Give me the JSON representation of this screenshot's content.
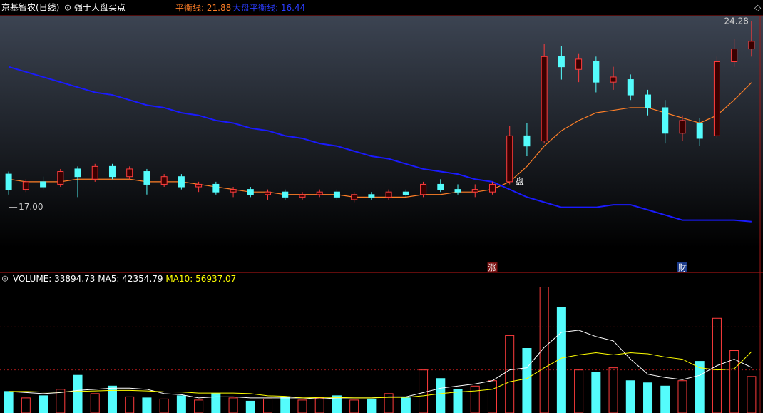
{
  "chart_data": [
    {
      "type": "candlestick",
      "title": "京基智农(日线)",
      "subtitle": "强于大盘买点",
      "ylim": [
        15.4,
        24.5
      ],
      "candles": [
        [
          18.3,
          17.7,
          18.4,
          17.5
        ],
        [
          17.7,
          18.0,
          18.1,
          17.6
        ],
        [
          18.0,
          17.8,
          18.2,
          17.7
        ],
        [
          17.9,
          18.4,
          18.5,
          17.8
        ],
        [
          18.5,
          18.2,
          18.6,
          17.4
        ],
        [
          18.1,
          18.6,
          18.7,
          18.0
        ],
        [
          18.6,
          18.2,
          18.7,
          18.1
        ],
        [
          18.2,
          18.5,
          18.6,
          18.1
        ],
        [
          18.4,
          17.9,
          18.5,
          17.5
        ],
        [
          17.9,
          18.2,
          18.3,
          17.8
        ],
        [
          18.2,
          17.8,
          18.3,
          17.7
        ],
        [
          17.8,
          17.9,
          18.0,
          17.6
        ],
        [
          17.9,
          17.6,
          18.0,
          17.5
        ],
        [
          17.6,
          17.7,
          17.8,
          17.4
        ],
        [
          17.7,
          17.5,
          17.8,
          17.4
        ],
        [
          17.5,
          17.6,
          17.7,
          17.3
        ],
        [
          17.6,
          17.4,
          17.7,
          17.3
        ],
        [
          17.4,
          17.5,
          17.6,
          17.3
        ],
        [
          17.5,
          17.6,
          17.7,
          17.4
        ],
        [
          17.6,
          17.4,
          17.7,
          17.3
        ],
        [
          17.3,
          17.5,
          17.6,
          17.2
        ],
        [
          17.5,
          17.4,
          17.6,
          17.3
        ],
        [
          17.4,
          17.6,
          17.7,
          17.3
        ],
        [
          17.6,
          17.5,
          17.7,
          17.4
        ],
        [
          17.5,
          17.9,
          18.0,
          17.4
        ],
        [
          17.9,
          17.7,
          18.1,
          17.6
        ],
        [
          17.7,
          17.6,
          17.9,
          17.5
        ],
        [
          17.6,
          17.7,
          17.9,
          17.4
        ],
        [
          17.6,
          17.9,
          18.0,
          17.5
        ],
        [
          18.0,
          19.8,
          20.2,
          17.9
        ],
        [
          19.8,
          19.4,
          20.3,
          19.0
        ],
        [
          19.6,
          22.9,
          23.4,
          19.5
        ],
        [
          22.9,
          22.5,
          23.3,
          22.0
        ],
        [
          22.4,
          22.8,
          23.0,
          21.9
        ],
        [
          22.7,
          21.9,
          22.9,
          21.5
        ],
        [
          21.9,
          22.1,
          22.5,
          21.6
        ],
        [
          22.0,
          21.4,
          22.2,
          21.2
        ],
        [
          21.4,
          20.9,
          21.6,
          20.6
        ],
        [
          20.9,
          19.9,
          21.2,
          19.5
        ],
        [
          19.9,
          20.4,
          20.6,
          19.6
        ],
        [
          20.3,
          19.7,
          20.5,
          19.4
        ],
        [
          19.8,
          22.7,
          22.9,
          19.7
        ],
        [
          22.7,
          23.2,
          23.6,
          22.5
        ],
        [
          23.2,
          23.5,
          24.28,
          22.9
        ]
      ],
      "up_color": "#ff3c3c",
      "down_color": "#54fcfc",
      "series": [
        {
          "name": "平衡线",
          "color": "#ff7f27",
          "values": [
            18.1,
            18.0,
            18.0,
            18.0,
            18.1,
            18.1,
            18.1,
            18.1,
            18.0,
            18.0,
            18.0,
            17.9,
            17.8,
            17.7,
            17.6,
            17.6,
            17.5,
            17.5,
            17.5,
            17.5,
            17.4,
            17.4,
            17.4,
            17.4,
            17.5,
            17.5,
            17.6,
            17.6,
            17.7,
            18.0,
            18.6,
            19.4,
            20.0,
            20.4,
            20.7,
            20.8,
            20.9,
            20.9,
            20.7,
            20.5,
            20.3,
            20.6,
            21.2,
            21.88
          ]
        },
        {
          "name": "大盘平衡线",
          "color": "#1a1aff",
          "values": [
            22.5,
            22.3,
            22.1,
            21.9,
            21.7,
            21.5,
            21.4,
            21.2,
            21.0,
            20.9,
            20.7,
            20.6,
            20.4,
            20.3,
            20.1,
            20.0,
            19.8,
            19.7,
            19.5,
            19.4,
            19.2,
            19.0,
            18.9,
            18.7,
            18.5,
            18.4,
            18.3,
            18.1,
            18.0,
            17.7,
            17.4,
            17.2,
            17.0,
            17.0,
            17.0,
            17.1,
            17.1,
            16.9,
            16.7,
            16.5,
            16.5,
            16.5,
            16.5,
            16.44
          ]
        }
      ],
      "annotations": [
        {
          "text": "24.28",
          "value": 24.28,
          "at": 43
        },
        {
          "text": "17.00",
          "value": 17.0,
          "at": 0
        },
        {
          "text": "盘",
          "value": 18.0,
          "at": 29
        },
        {
          "text": "涨",
          "at": 28
        },
        {
          "text": "财",
          "at": 39
        }
      ]
    },
    {
      "type": "volume",
      "ylim": [
        0,
        120000
      ],
      "grid": [
        40000,
        80000
      ],
      "series": [
        {
          "name": "VOLUME",
          "values": [
            20000,
            14000,
            16000,
            22000,
            35000,
            18000,
            25000,
            15000,
            14000,
            13000,
            16000,
            12000,
            18000,
            14000,
            11000,
            13000,
            15000,
            12000,
            14000,
            16000,
            12000,
            13000,
            18000,
            14000,
            40000,
            32000,
            22000,
            25000,
            30000,
            72000,
            60000,
            117000,
            98000,
            40000,
            38000,
            42000,
            30000,
            28000,
            25000,
            30000,
            48000,
            88000,
            58000,
            33894.73
          ]
        },
        {
          "name": "MA5",
          "color": "#ffffff",
          "values": [
            20000,
            19000,
            18000,
            19000,
            21000,
            22000,
            23000,
            23000,
            22000,
            18000,
            17000,
            14000,
            15000,
            15000,
            14000,
            14000,
            14000,
            14000,
            13000,
            14000,
            14000,
            14000,
            15000,
            15000,
            19000,
            23000,
            25000,
            27000,
            30000,
            40000,
            42000,
            61000,
            75000,
            77000,
            71000,
            67000,
            50000,
            36000,
            33000,
            31000,
            35000,
            44000,
            50000,
            42354.79
          ]
        },
        {
          "name": "MA10",
          "color": "#ffff00",
          "values": [
            20000,
            20000,
            19500,
            19500,
            20000,
            20500,
            21000,
            21000,
            20500,
            19600,
            19500,
            18500,
            18500,
            18500,
            18000,
            16000,
            15500,
            14000,
            14300,
            14500,
            14000,
            14000,
            14500,
            14500,
            16000,
            18000,
            19500,
            20500,
            22000,
            29000,
            32000,
            42000,
            51000,
            54000,
            56000,
            54000,
            56000,
            55000,
            52000,
            50000,
            42000,
            40000,
            41000,
            56937.07
          ]
        }
      ]
    }
  ]
}
